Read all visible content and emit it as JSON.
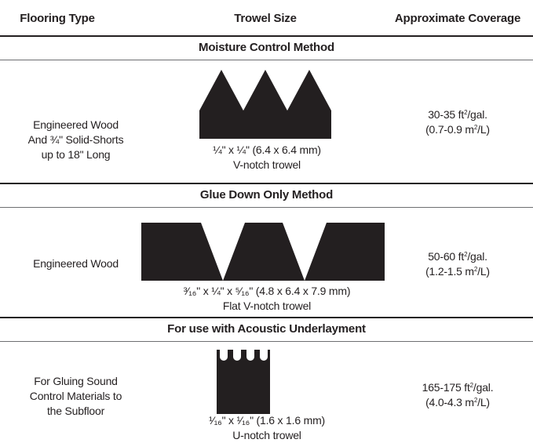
{
  "header": {
    "col1": "Flooring Type",
    "col2": "Trowel Size",
    "col3": "Approximate Coverage"
  },
  "sections": [
    {
      "title": "Moisture Control Method",
      "flooring": [
        "Engineered Wood",
        "And ¾\" Solid-Shorts",
        "up to 18\" Long"
      ],
      "trowel_size": "¼\" x ¼\" (6.4 x 6.4 mm)",
      "trowel_type": "V-notch trowel",
      "trowel_icon": "v-notch-trowel-icon",
      "coverage_imperial_value": "30-35 ft",
      "coverage_imperial_unit": "/gal.",
      "coverage_metric_value": "(0.7-0.9 m",
      "coverage_metric_unit": "/L)"
    },
    {
      "title": "Glue Down Only Method",
      "flooring": [
        "Engineered Wood"
      ],
      "trowel_size": "³⁄₁₆\" x ¼\" x ⁵⁄₁₆\" (4.8 x 6.4 x 7.9 mm)",
      "trowel_type": "Flat V-notch trowel",
      "trowel_icon": "flat-v-notch-trowel-icon",
      "coverage_imperial_value": "50-60 ft",
      "coverage_imperial_unit": "/gal.",
      "coverage_metric_value": "(1.2-1.5 m",
      "coverage_metric_unit": "/L)"
    },
    {
      "title": "For use with Acoustic Underlayment",
      "flooring": [
        "For Gluing Sound",
        "Control Materials to",
        "the Subfloor"
      ],
      "trowel_size": "¹⁄₁₆\" x ¹⁄₁₆\" (1.6 x 1.6 mm)",
      "trowel_type": "U-notch trowel",
      "trowel_icon": "u-notch-trowel-icon",
      "coverage_imperial_value": "165-175 ft",
      "coverage_imperial_unit": "/gal.",
      "coverage_metric_value": "(4.0-4.3 m",
      "coverage_metric_unit": "/L)"
    }
  ],
  "superscript": "2"
}
